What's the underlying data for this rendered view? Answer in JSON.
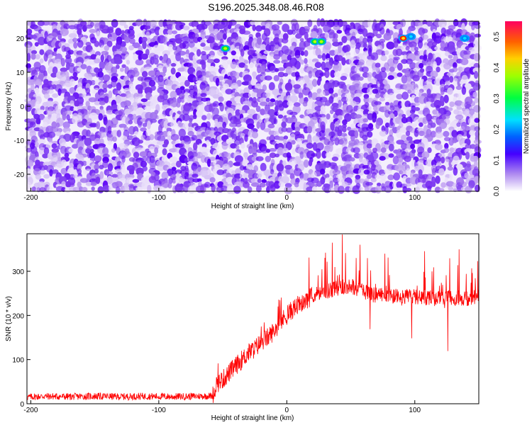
{
  "title": "S196.2025.348.08.46.R08",
  "chart_data": [
    {
      "type": "heatmap",
      "xlabel": "Height of straight line (km)",
      "ylabel": "Frequency (Hz)",
      "xlim": [
        -203,
        150
      ],
      "ylim": [
        -25,
        25
      ],
      "x_ticks": [
        -200,
        -100,
        0,
        100
      ],
      "x_tick_labels": [
        "-200",
        "-100",
        "0",
        "100"
      ],
      "y_ticks": [
        20,
        10,
        0,
        -10,
        -20
      ],
      "y_tick_labels": [
        "20",
        "10",
        "0",
        "-10",
        "-20"
      ],
      "colorbar": {
        "label": "Normalized spectral amplitude",
        "range": [
          0,
          0.55
        ],
        "ticks": [
          0,
          0.1,
          0.2,
          0.3,
          0.4,
          0.5
        ],
        "tick_labels": [
          "0.0",
          "0.1",
          "0.2",
          "0.3",
          "0.4",
          "0.5"
        ]
      },
      "hotspots": [
        {
          "x": -48,
          "y": 17,
          "value": 0.3
        },
        {
          "x": 22,
          "y": 19,
          "value": 0.35
        },
        {
          "x": 27,
          "y": 19,
          "value": 0.32
        },
        {
          "x": 91,
          "y": 20,
          "value": 0.55
        },
        {
          "x": 97,
          "y": 20.5,
          "value": 0.2
        },
        {
          "x": 139,
          "y": 20,
          "value": 0.18
        }
      ]
    },
    {
      "type": "line",
      "xlabel": "Height of straight line (km)",
      "ylabel": "SNR (10 * v/v)",
      "xlim": [
        -203,
        150
      ],
      "ylim": [
        0,
        385
      ],
      "x_ticks": [
        -200,
        -100,
        0,
        100
      ],
      "x_tick_labels": [
        "-200",
        "-100",
        "0",
        "100"
      ],
      "y_ticks": [
        0,
        100,
        200,
        300
      ],
      "y_tick_labels": [
        "0",
        "100",
        "200",
        "300"
      ],
      "series": [
        {
          "color": "#ff0000",
          "x": [
            -203,
            -190,
            -170,
            -150,
            -130,
            -110,
            -90,
            -70,
            -58,
            -55,
            -50,
            -45,
            -40,
            -35,
            -30,
            -25,
            -20,
            -15,
            -10,
            -5,
            0,
            5,
            10,
            15,
            20,
            25,
            30,
            35,
            40,
            45,
            50,
            55,
            60,
            65,
            70,
            80,
            90,
            100,
            110,
            120,
            130,
            140,
            150
          ],
          "values": [
            15,
            17,
            16,
            17,
            16,
            17,
            16,
            17,
            18,
            45,
            55,
            70,
            85,
            100,
            115,
            125,
            140,
            150,
            165,
            185,
            200,
            215,
            225,
            235,
            245,
            250,
            255,
            258,
            262,
            265,
            268,
            260,
            255,
            250,
            245,
            245,
            240,
            242,
            240,
            238,
            240,
            238,
            240
          ]
        }
      ]
    }
  ]
}
